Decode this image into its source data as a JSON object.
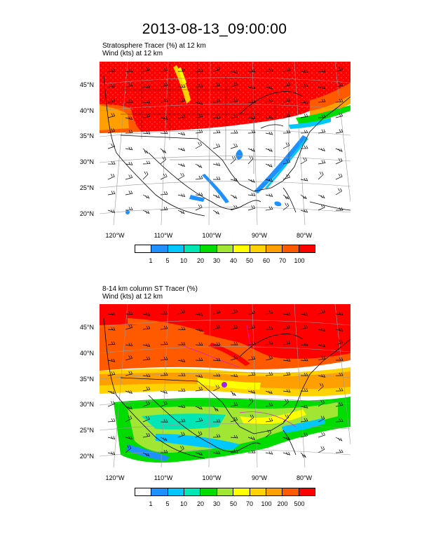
{
  "title": "2013-08-13_09:00:00",
  "panel1": {
    "line1": "Stratosphere Tracer   (%)     at   12 km",
    "line2": "Wind   (kts)     at   12 km",
    "colorbar_labels": [
      "1",
      "5",
      "10",
      "20",
      "30",
      "40",
      "50",
      "60",
      "70",
      "100"
    ]
  },
  "panel2": {
    "line1": "8-14 km column ST Tracer   (%)",
    "line2": "Wind   (kts)     at   12 km",
    "colorbar_labels": [
      "1",
      "5",
      "10",
      "20",
      "30",
      "50",
      "70",
      "100",
      "200",
      "500"
    ]
  },
  "lat_labels": [
    "45°N",
    "40°N",
    "35°N",
    "30°N",
    "25°N",
    "20°N"
  ],
  "lon_labels": [
    "120°W",
    "110°W",
    "100°W",
    "90°W",
    "80°W"
  ],
  "colorbar_colors": [
    "#ffffff",
    "#1e90ff",
    "#00c8ff",
    "#00e6b4",
    "#00dc00",
    "#a0e632",
    "#ffff00",
    "#ffd200",
    "#ffa000",
    "#ff5a00",
    "#ff0000"
  ]
}
